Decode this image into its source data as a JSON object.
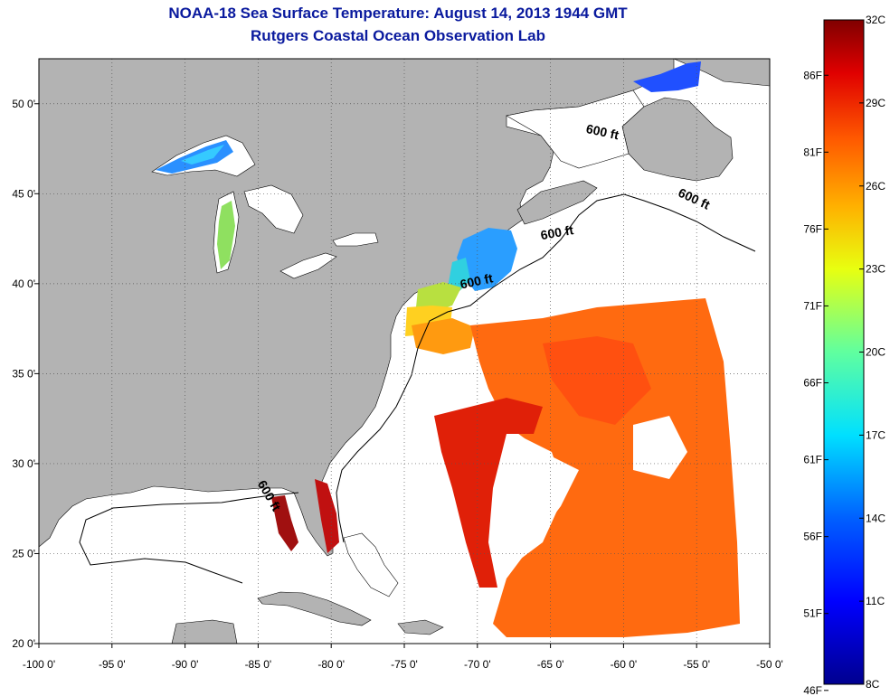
{
  "title": {
    "line1": "NOAA-18 Sea Surface Temperature:  August 14, 2013 1944 GMT",
    "line2": "Rutgers Coastal Ocean Observation Lab"
  },
  "map": {
    "lon_range": [
      -100,
      -50
    ],
    "lat_range": [
      20,
      52.5
    ],
    "lon_ticks": [
      {
        "v": -100,
        "label": "-100 0'"
      },
      {
        "v": -95,
        "label": "-95 0'"
      },
      {
        "v": -90,
        "label": "-90 0'"
      },
      {
        "v": -85,
        "label": "-85 0'"
      },
      {
        "v": -80,
        "label": "-80 0'"
      },
      {
        "v": -75,
        "label": "-75 0'"
      },
      {
        "v": -70,
        "label": "-70 0'"
      },
      {
        "v": -65,
        "label": "-65 0'"
      },
      {
        "v": -60,
        "label": "-60 0'"
      },
      {
        "v": -55,
        "label": "-55 0'"
      },
      {
        "v": -50,
        "label": "-50 0'"
      }
    ],
    "lat_ticks": [
      {
        "v": 20,
        "label": "20 0'"
      },
      {
        "v": 25,
        "label": "25 0'"
      },
      {
        "v": 30,
        "label": "30 0'"
      },
      {
        "v": 35,
        "label": "35 0'"
      },
      {
        "v": 40,
        "label": "40 0'"
      },
      {
        "v": 45,
        "label": "45 0'"
      },
      {
        "v": 50,
        "label": "50 0'"
      }
    ],
    "contour_labels": [
      {
        "text": "600 ft",
        "lon": -61.5,
        "lat": 48.2,
        "rot": 12
      },
      {
        "text": "600 ft",
        "lon": -55.3,
        "lat": 44.5,
        "rot": 25
      },
      {
        "text": "600 ft",
        "lon": -64.5,
        "lat": 42.6,
        "rot": -10
      },
      {
        "text": "600 ft",
        "lon": -70.0,
        "lat": 39.9,
        "rot": -12
      },
      {
        "text": "600 ft",
        "lon": -84.5,
        "lat": 28.1,
        "rot": 60
      }
    ],
    "colors": {
      "land": "#b3b3b3",
      "ocean": "#ffffff",
      "grid": "#555555"
    }
  },
  "colorbar": {
    "celsius": [
      {
        "v": 8,
        "label": "8C"
      },
      {
        "v": 11,
        "label": "11C"
      },
      {
        "v": 14,
        "label": "14C"
      },
      {
        "v": 17,
        "label": "17C"
      },
      {
        "v": 20,
        "label": "20C"
      },
      {
        "v": 23,
        "label": "23C"
      },
      {
        "v": 26,
        "label": "26C"
      },
      {
        "v": 29,
        "label": "29C"
      },
      {
        "v": 32,
        "label": "32C"
      }
    ],
    "fahrenheit": [
      {
        "v": 46,
        "label": "46F"
      },
      {
        "v": 51,
        "label": "51F"
      },
      {
        "v": 56,
        "label": "56F"
      },
      {
        "v": 61,
        "label": "61F"
      },
      {
        "v": 66,
        "label": "66F"
      },
      {
        "v": 71,
        "label": "71F"
      },
      {
        "v": 76,
        "label": "76F"
      },
      {
        "v": 81,
        "label": "81F"
      },
      {
        "v": 86,
        "label": "86F"
      }
    ],
    "range_c": [
      8,
      32
    ],
    "gradient": [
      "#00008f",
      "#0000ff",
      "#0080ff",
      "#00ffff",
      "#80ff80",
      "#ffff00",
      "#ff8000",
      "#ff0000",
      "#800000"
    ]
  }
}
